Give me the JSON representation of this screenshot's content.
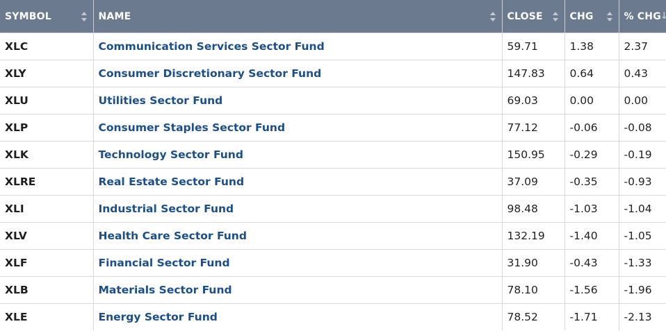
{
  "columns": {
    "symbol": "SYMBOL",
    "name": "NAME",
    "close": "CLOSE",
    "chg": "CHG",
    "pct_chg": "% CHG"
  },
  "rows": [
    {
      "symbol": "XLC",
      "name": "Communication Services Sector Fund",
      "close": "59.71",
      "chg": "1.38",
      "pct_chg": "2.37"
    },
    {
      "symbol": "XLY",
      "name": "Consumer Discretionary Sector Fund",
      "close": "147.83",
      "chg": "0.64",
      "pct_chg": "0.43"
    },
    {
      "symbol": "XLU",
      "name": "Utilities Sector Fund",
      "close": "69.03",
      "chg": "0.00",
      "pct_chg": "0.00"
    },
    {
      "symbol": "XLP",
      "name": "Consumer Staples Sector Fund",
      "close": "77.12",
      "chg": "-0.06",
      "pct_chg": "-0.08"
    },
    {
      "symbol": "XLK",
      "name": "Technology Sector Fund",
      "close": "150.95",
      "chg": "-0.29",
      "pct_chg": "-0.19"
    },
    {
      "symbol": "XLRE",
      "name": "Real Estate Sector Fund",
      "close": "37.09",
      "chg": "-0.35",
      "pct_chg": "-0.93"
    },
    {
      "symbol": "XLI",
      "name": "Industrial Sector Fund",
      "close": "98.48",
      "chg": "-1.03",
      "pct_chg": "-1.04"
    },
    {
      "symbol": "XLV",
      "name": "Health Care Sector Fund",
      "close": "132.19",
      "chg": "-1.40",
      "pct_chg": "-1.05"
    },
    {
      "symbol": "XLF",
      "name": "Financial Sector Fund",
      "close": "31.90",
      "chg": "-0.43",
      "pct_chg": "-1.33"
    },
    {
      "symbol": "XLB",
      "name": "Materials Sector Fund",
      "close": "78.10",
      "chg": "-1.56",
      "pct_chg": "-1.96"
    },
    {
      "symbol": "XLE",
      "name": "Energy Sector Fund",
      "close": "78.52",
      "chg": "-1.71",
      "pct_chg": "-2.13"
    }
  ],
  "colors": {
    "header_bg": "#6b7a8f",
    "link": "#1a4f8c"
  }
}
